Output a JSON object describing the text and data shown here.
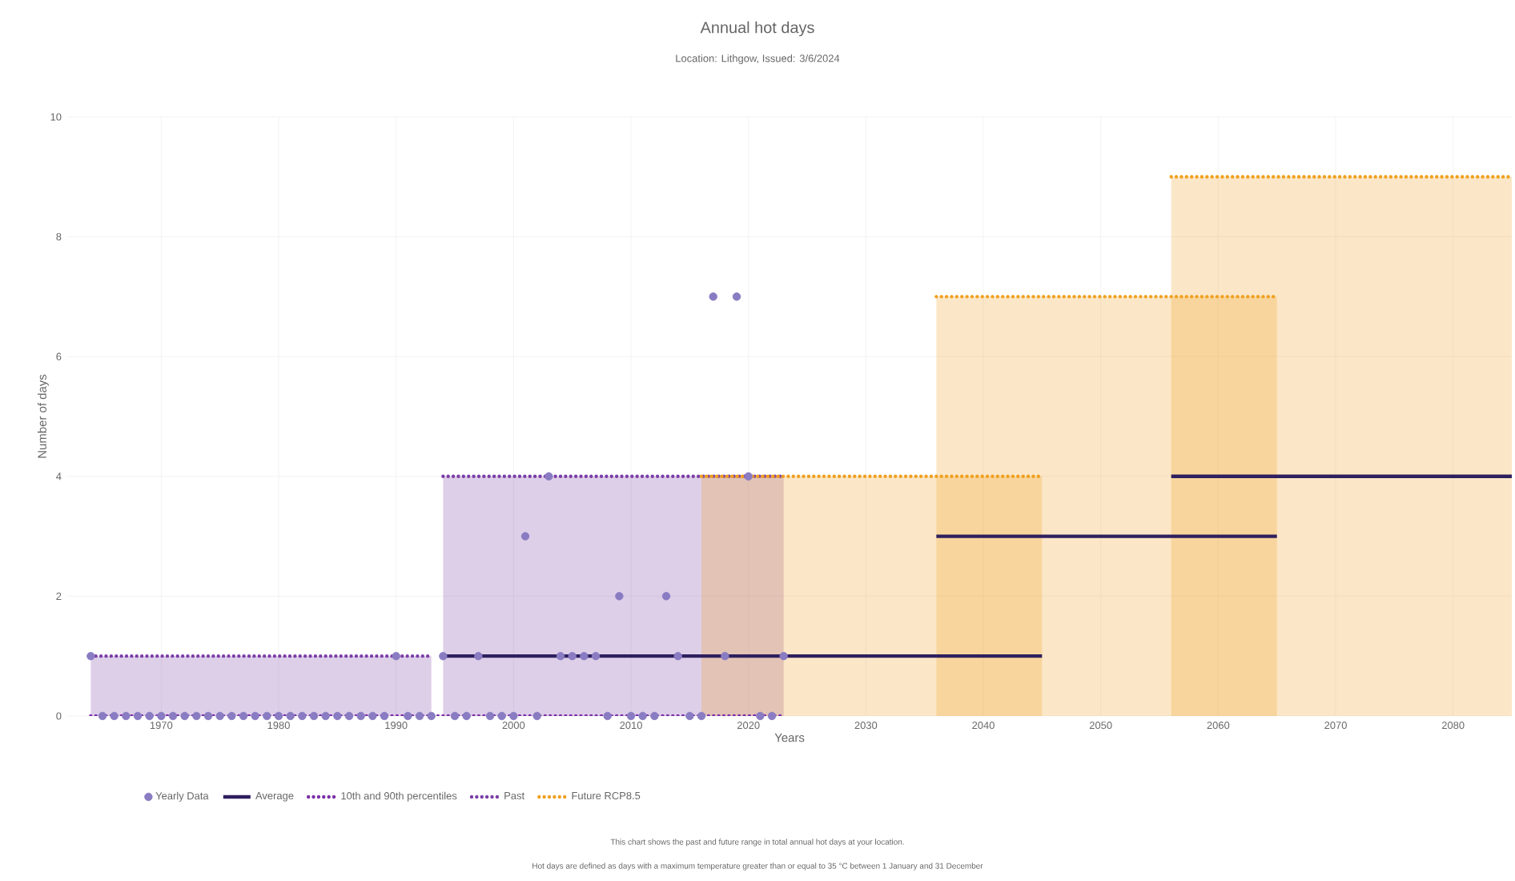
{
  "chart_data": {
    "type": "scatter",
    "title": "Annual hot days",
    "subtitle": "Location: Lithgow, Issued: 3/6/2024",
    "xlabel": "Years",
    "ylabel": "Number of days",
    "annotations": [
      "This chart shows the past and future range in total annual hot days at your location.",
      "Hot days are defined as days with a maximum temperature greater than or equal to 35 °C between 1 January and 31 December"
    ],
    "xlim": [
      1962,
      2085
    ],
    "ylim": [
      0,
      10
    ],
    "xticks": [
      1970,
      1980,
      1990,
      2000,
      2010,
      2020,
      2030,
      2040,
      2050,
      2060,
      2070,
      2080
    ],
    "yticks": [
      0,
      2,
      4,
      6,
      8,
      10
    ],
    "grid": true,
    "legend": "bottom",
    "series": [
      {
        "name": "Yearly Data",
        "marker": "circle",
        "color": "#8a7cc2",
        "x": [
          1964,
          1965,
          1966,
          1967,
          1968,
          1969,
          1970,
          1971,
          1972,
          1973,
          1974,
          1975,
          1976,
          1977,
          1978,
          1979,
          1980,
          1981,
          1982,
          1983,
          1984,
          1985,
          1986,
          1987,
          1988,
          1989,
          1990,
          1991,
          1992,
          1993,
          1994,
          1995,
          1996,
          1997,
          1998,
          1999,
          2000,
          2001,
          2002,
          2003,
          2004,
          2005,
          2006,
          2007,
          2008,
          2009,
          2010,
          2011,
          2012,
          2013,
          2014,
          2015,
          2016,
          2017,
          2018,
          2019,
          2020,
          2021,
          2022,
          2023
        ],
        "values": [
          1,
          0,
          0,
          0,
          0,
          0,
          0,
          0,
          0,
          0,
          0,
          0,
          0,
          0,
          0,
          0,
          0,
          0,
          0,
          0,
          0,
          0,
          0,
          0,
          0,
          0,
          1,
          0,
          0,
          0,
          1,
          0,
          0,
          1,
          0,
          0,
          0,
          3,
          0,
          4,
          1,
          1,
          1,
          1,
          0,
          2,
          0,
          0,
          0,
          2,
          1,
          0,
          0,
          7,
          1,
          7,
          4,
          0,
          0,
          1
        ]
      },
      {
        "name": "Average",
        "type": "line",
        "line_style": "solid",
        "color": "#2e1f5e",
        "x": [
          1994,
          2045
        ],
        "values": [
          1,
          1
        ]
      },
      {
        "type": "line",
        "line_style": "solid",
        "color": "#2e1f5e",
        "x": [
          2036,
          2065
        ],
        "values": [
          3,
          3
        ]
      },
      {
        "type": "line",
        "line_style": "solid",
        "color": "#2e1f5e",
        "x": [
          2056,
          2085
        ],
        "values": [
          4,
          4
        ]
      },
      {
        "name": "10th and 90th percentiles",
        "type": "line",
        "line_style": "dotted",
        "color": "#7b2fa8",
        "x": [
          1964,
          2023
        ],
        "values": [
          0,
          0
        ]
      },
      {
        "name": "Past",
        "type": "area",
        "line_style": "dotted",
        "color": "#7b3fa8",
        "x": [
          1964,
          1993
        ],
        "values": [
          1,
          1
        ]
      },
      {
        "type": "area",
        "line_style": "dotted",
        "color": "#7b3fa8",
        "x": [
          1994,
          2023
        ],
        "values": [
          4,
          4
        ]
      },
      {
        "name": "Future RCP8.5",
        "type": "area",
        "line_style": "dotted",
        "color": "#f0a020",
        "x": [
          2016,
          2045
        ],
        "values": [
          4,
          4
        ]
      },
      {
        "type": "area",
        "line_style": "dotted",
        "color": "#f0a020",
        "x": [
          2036,
          2065
        ],
        "values": [
          7,
          7
        ]
      },
      {
        "type": "area",
        "line_style": "dotted",
        "color": "#f0a020",
        "x": [
          2056,
          2085
        ],
        "values": [
          9,
          9
        ]
      }
    ]
  }
}
